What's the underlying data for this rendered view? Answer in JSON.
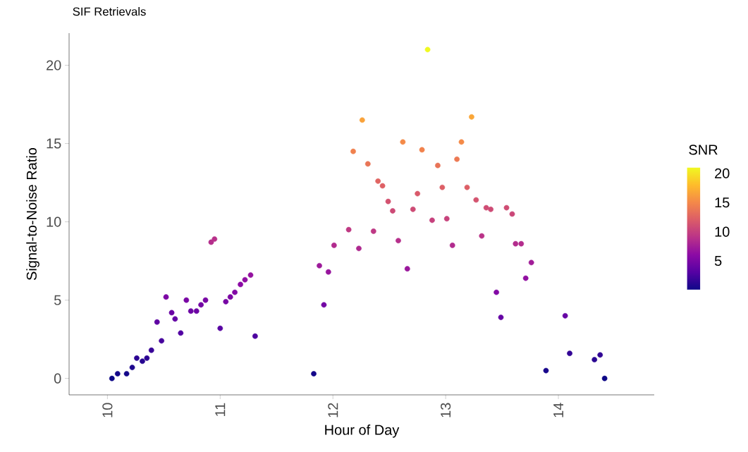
{
  "chart_data": {
    "type": "scatter",
    "title": "SIF Retrievals",
    "xlabel": "Hour of Day",
    "ylabel": "Signal-to-Noise Ratio",
    "clabel": "SNR",
    "x": [
      10.04,
      10.09,
      10.17,
      10.22,
      10.26,
      10.31,
      10.35,
      10.39,
      10.44,
      10.48,
      10.52,
      10.57,
      10.6,
      10.65,
      10.7,
      10.74,
      10.79,
      10.83,
      10.87,
      10.92,
      10.95,
      11.0,
      11.05,
      11.09,
      11.13,
      11.18,
      11.22,
      11.27,
      11.31,
      11.83,
      11.88,
      11.92,
      11.96,
      12.01,
      12.14,
      12.18,
      12.23,
      12.26,
      12.31,
      12.36,
      12.4,
      12.44,
      12.49,
      12.53,
      12.58,
      12.62,
      12.66,
      12.71,
      12.75,
      12.79,
      12.84,
      12.88,
      12.93,
      12.97,
      13.01,
      13.06,
      13.1,
      13.14,
      13.19,
      13.23,
      13.27,
      13.32,
      13.36,
      13.4,
      13.45,
      13.49,
      13.54,
      13.59,
      13.62,
      13.67,
      13.71,
      13.76,
      13.89,
      14.06,
      14.1,
      14.32,
      14.37,
      14.41
    ],
    "values": [
      0.0,
      0.3,
      0.3,
      0.7,
      1.3,
      1.1,
      1.3,
      1.8,
      3.6,
      2.4,
      5.2,
      4.2,
      3.8,
      2.9,
      5.0,
      4.3,
      4.3,
      4.7,
      5.0,
      8.7,
      8.9,
      3.2,
      4.9,
      5.2,
      5.5,
      6.0,
      6.3,
      6.6,
      2.7,
      0.3,
      7.2,
      4.7,
      6.8,
      8.5,
      9.5,
      14.5,
      8.3,
      16.5,
      13.7,
      9.4,
      12.6,
      12.3,
      11.3,
      10.7,
      8.8,
      15.1,
      7.0,
      10.8,
      11.8,
      14.6,
      21.0,
      10.1,
      13.6,
      12.2,
      10.2,
      8.5,
      14.0,
      15.1,
      12.2,
      16.7,
      11.4,
      9.1,
      10.9,
      10.8,
      5.5,
      3.9,
      10.9,
      10.5,
      8.6,
      8.6,
      6.4,
      7.4,
      0.5,
      4.0,
      1.6,
      1.2,
      1.5,
      0.0
    ],
    "cvalues": [
      0.0,
      0.3,
      0.3,
      0.7,
      1.3,
      1.1,
      1.3,
      1.8,
      3.6,
      2.4,
      5.2,
      4.2,
      3.8,
      2.9,
      5.0,
      4.3,
      4.3,
      4.7,
      5.0,
      8.7,
      8.9,
      3.2,
      4.9,
      5.2,
      5.5,
      6.0,
      6.3,
      6.6,
      2.7,
      0.3,
      7.2,
      4.7,
      6.8,
      8.5,
      9.5,
      14.5,
      8.3,
      16.5,
      13.7,
      9.4,
      12.6,
      12.3,
      11.3,
      10.7,
      8.8,
      15.1,
      7.0,
      10.8,
      11.8,
      14.6,
      21.0,
      10.1,
      13.6,
      12.2,
      10.2,
      8.5,
      14.0,
      15.1,
      12.2,
      16.7,
      11.4,
      9.1,
      10.9,
      10.8,
      5.5,
      3.9,
      10.9,
      10.5,
      8.6,
      8.6,
      6.4,
      7.4,
      0.5,
      4.0,
      1.6,
      1.2,
      1.5,
      0.0
    ],
    "xlim": [
      9.66,
      14.85
    ],
    "ylim": [
      -1.05,
      22.05
    ],
    "xticks": [
      10,
      11,
      12,
      13,
      14
    ],
    "yticks": [
      0,
      5,
      10,
      15,
      20
    ],
    "clim": [
      0,
      21
    ],
    "cticks": [
      5,
      10,
      15,
      20
    ],
    "marker": "circle"
  }
}
